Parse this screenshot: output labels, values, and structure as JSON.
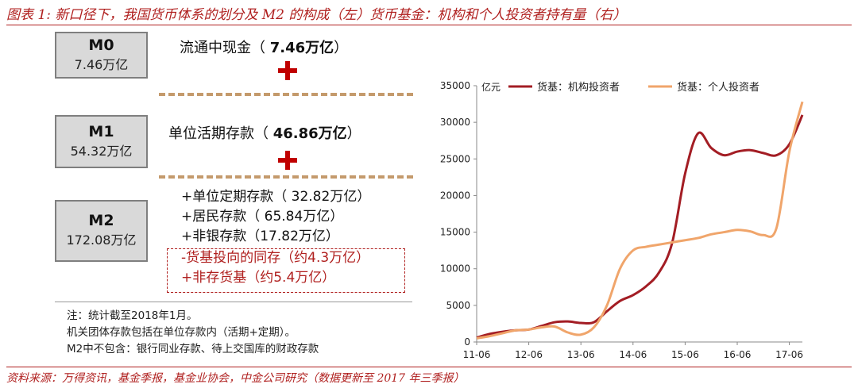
{
  "title": "图表 1: 新口径下，我国货币体系的划分及 M2 的构成（左）货币基金：机构和个人投资者持有量（右）",
  "source": "资料来源：万得资讯，基金季报，基金业协会，中金公司研究（数据更新至 2017 年三季报）",
  "m0": {
    "label": "M0",
    "value": "7.46万亿",
    "desc": "流通中现金（ ",
    "desc_value": "7.46万亿",
    "desc_end": "）"
  },
  "m1": {
    "label": "M1",
    "value": "54.32万亿",
    "desc": "单位活期存款（ ",
    "desc_value": "46.86万亿",
    "desc_end": "）"
  },
  "m2": {
    "label": "M2",
    "value": "172.08万亿",
    "items": [
      "+单位定期存款（ 32.82万亿）",
      "+居民存款（ 65.84万亿）",
      "+非银存款（17.82万亿）"
    ],
    "excluded": [
      "-货基投向的同存（约4.3万亿）",
      "+非存货基（约5.4万亿）"
    ]
  },
  "notes": [
    "注：统计截至2018年1月。",
    "机关团体存款包括在单位存款内（活期+定期）。",
    "M2中不包含：银行同业存款、待上交国库的财政存款"
  ],
  "chart_data": {
    "type": "line",
    "ylabel": "亿元",
    "ylim": [
      0,
      35000
    ],
    "yticks": [
      "0",
      "5000",
      "10000",
      "15000",
      "20000",
      "25000",
      "30000",
      "35000"
    ],
    "xticks": [
      "11-06",
      "12-06",
      "13-06",
      "14-06",
      "15-06",
      "16-06",
      "17-06"
    ],
    "x": [
      2011.5,
      2011.75,
      2012.0,
      2012.25,
      2012.5,
      2012.75,
      2013.0,
      2013.25,
      2013.5,
      2013.75,
      2014.0,
      2014.25,
      2014.5,
      2014.75,
      2015.0,
      2015.25,
      2015.5,
      2015.75,
      2016.0,
      2016.25,
      2016.5,
      2016.75,
      2017.0,
      2017.25,
      2017.5,
      2017.75
    ],
    "legend_position": "top",
    "series": [
      {
        "name": "货基：机构投资者",
        "color": "#a31d24",
        "values": [
          600,
          1100,
          1400,
          1600,
          1700,
          2200,
          2700,
          2800,
          2600,
          2700,
          4200,
          5600,
          6400,
          7600,
          9500,
          13500,
          23000,
          28500,
          26500,
          25500,
          26000,
          26200,
          25800,
          25500,
          27000,
          31000
        ]
      },
      {
        "name": "货基：个人投资者",
        "color": "#f0a56b",
        "values": [
          500,
          800,
          1200,
          1600,
          1700,
          2000,
          2100,
          1300,
          1000,
          2000,
          5000,
          10000,
          12500,
          13000,
          13300,
          13600,
          13900,
          14200,
          14700,
          15000,
          15300,
          15100,
          14600,
          15500,
          26000,
          32800
        ]
      }
    ]
  }
}
